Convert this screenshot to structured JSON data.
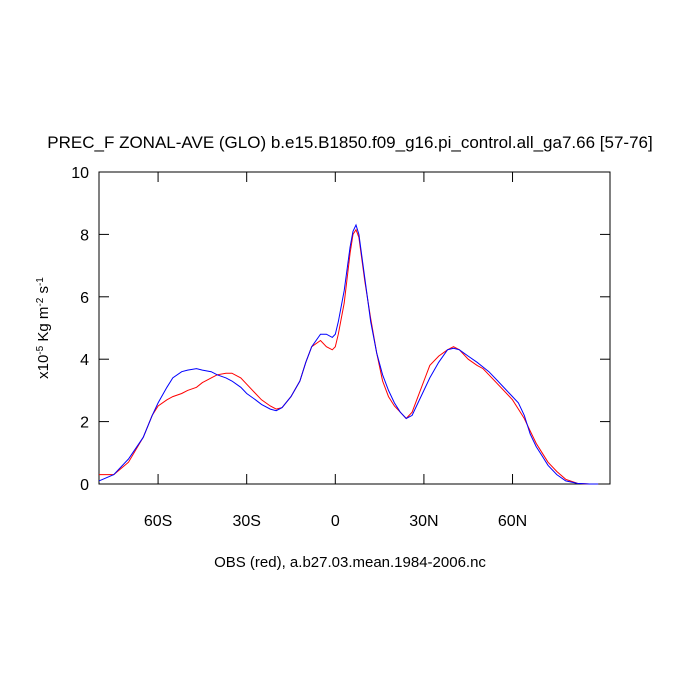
{
  "chart_data": {
    "type": "line",
    "title": "PREC_F ZONAL-AVE (GLO) b.e15.B1850.f09_g16.pi_control.all_ga7.66 [57-76]",
    "x_label": "OBS (red), a.b27.03.mean.1984-2006.nc",
    "y_label": [
      "x10",
      "-5",
      " Kg m",
      "-2",
      " s",
      "-1"
    ],
    "x": [
      -80,
      -75,
      -70,
      -65,
      -62,
      -60,
      -57,
      -55,
      -52,
      -50,
      -47,
      -45,
      -42,
      -40,
      -37,
      -35,
      -32,
      -30,
      -27,
      -25,
      -22,
      -20,
      -18,
      -15,
      -12,
      -10,
      -8,
      -5,
      -3,
      -1,
      0,
      1,
      3,
      5,
      6,
      7,
      8,
      10,
      12,
      14,
      16,
      18,
      20,
      22,
      24,
      26,
      28,
      30,
      32,
      35,
      38,
      40,
      42,
      45,
      48,
      50,
      52,
      55,
      58,
      60,
      62,
      64,
      66,
      68,
      70,
      72,
      75,
      78,
      82,
      86,
      89
    ],
    "series": [
      {
        "color": "#ff0000",
        "values": [
          0.3,
          0.3,
          0.7,
          1.5,
          2.2,
          2.5,
          2.7,
          2.8,
          2.9,
          3.0,
          3.1,
          3.25,
          3.4,
          3.5,
          3.55,
          3.55,
          3.4,
          3.2,
          2.9,
          2.7,
          2.5,
          2.4,
          2.45,
          2.8,
          3.3,
          3.9,
          4.4,
          4.6,
          4.4,
          4.3,
          4.4,
          4.8,
          5.8,
          7.4,
          8.0,
          8.15,
          7.9,
          6.5,
          5.3,
          4.2,
          3.3,
          2.8,
          2.5,
          2.3,
          2.1,
          2.3,
          2.8,
          3.3,
          3.8,
          4.1,
          4.3,
          4.4,
          4.3,
          4.0,
          3.8,
          3.7,
          3.5,
          3.2,
          2.9,
          2.7,
          2.4,
          2.1,
          1.7,
          1.3,
          1.0,
          0.7,
          0.4,
          0.15,
          0.02,
          0.0,
          0.0
        ]
      },
      {
        "color": "#0000ff",
        "values": [
          0.1,
          0.3,
          0.8,
          1.5,
          2.2,
          2.6,
          3.1,
          3.4,
          3.6,
          3.65,
          3.7,
          3.65,
          3.6,
          3.5,
          3.4,
          3.3,
          3.1,
          2.9,
          2.7,
          2.55,
          2.4,
          2.35,
          2.45,
          2.8,
          3.3,
          3.9,
          4.4,
          4.8,
          4.8,
          4.7,
          4.8,
          5.2,
          6.2,
          7.6,
          8.1,
          8.3,
          8.0,
          6.6,
          5.2,
          4.2,
          3.5,
          3.0,
          2.6,
          2.3,
          2.1,
          2.2,
          2.6,
          3.0,
          3.4,
          3.9,
          4.3,
          4.35,
          4.3,
          4.1,
          3.9,
          3.75,
          3.6,
          3.3,
          3.0,
          2.8,
          2.6,
          2.2,
          1.6,
          1.2,
          0.9,
          0.6,
          0.3,
          0.1,
          0.02,
          0.0,
          0.0
        ]
      }
    ],
    "xlim": [
      -80,
      93
    ],
    "xticks": [
      {
        "value": -60,
        "label": "60S"
      },
      {
        "value": -30,
        "label": "30S"
      },
      0,
      {
        "value": 30,
        "label": "30N"
      },
      {
        "value": 60,
        "label": "60N"
      }
    ],
    "ylim": [
      0,
      10
    ],
    "yticks": [
      0,
      2,
      4,
      6,
      8,
      10
    ]
  }
}
